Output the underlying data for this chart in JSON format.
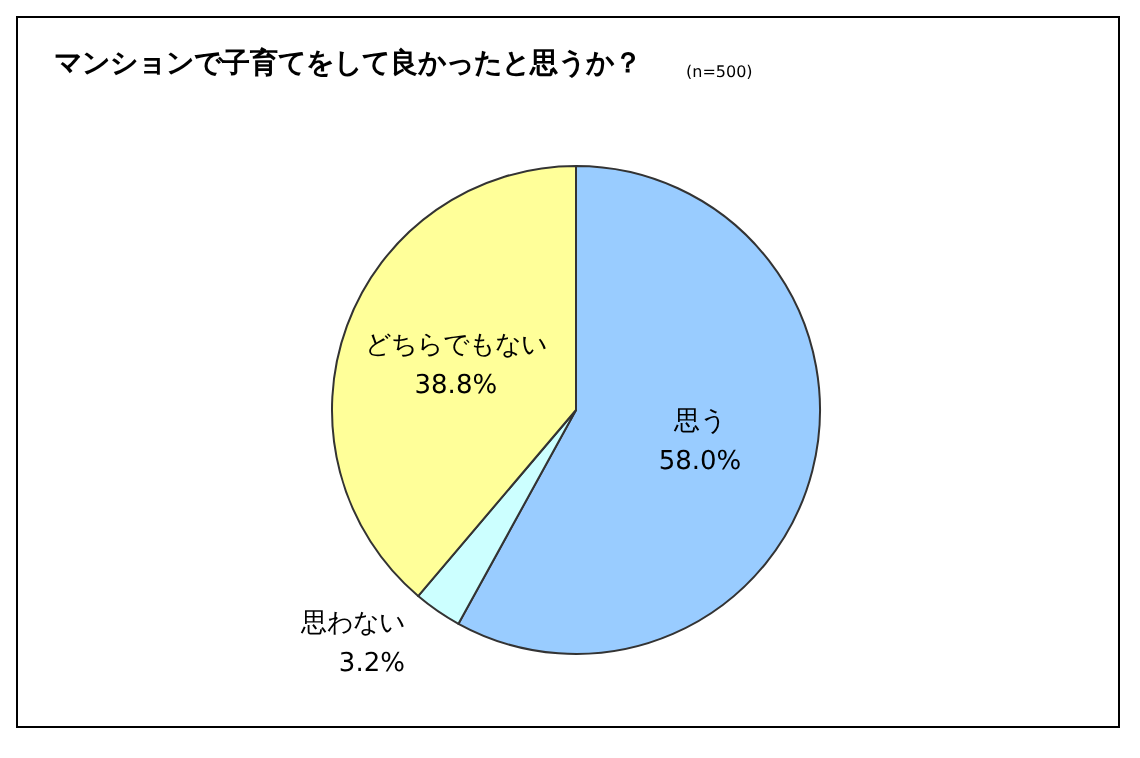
{
  "chart_data": {
    "type": "pie",
    "title": "マンションで子育てをして良かったと思うか？",
    "subtitle": "(n=500)",
    "categories": [
      "思う",
      "思わない",
      "どちらでもない"
    ],
    "values": [
      58.0,
      3.2,
      38.8
    ],
    "value_labels": [
      "58.0%",
      "3.2%",
      "38.8%"
    ],
    "colors": [
      "#99ccff",
      "#ccffff",
      "#ffff99"
    ],
    "legend": false
  }
}
